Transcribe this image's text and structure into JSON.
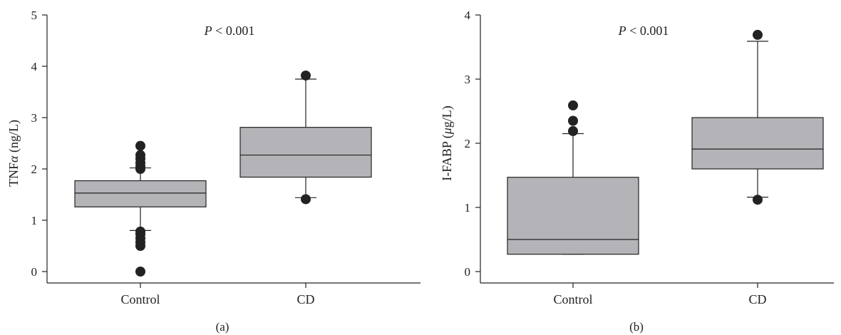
{
  "chart_data": [
    {
      "type": "box",
      "panel_label": "(a)",
      "annotation": {
        "prefix": "P",
        "text": " < 0.001"
      },
      "ylabel": {
        "main": "TNF",
        "greek": "α",
        "unit": " (ng/L)"
      },
      "ylim": [
        0,
        5
      ],
      "yticks": [
        "0",
        "1",
        "2",
        "3",
        "4",
        "5"
      ],
      "categories": [
        "Control",
        "CD"
      ],
      "boxes": [
        {
          "category": "Control",
          "whisker_low": 0.8,
          "q1": 1.26,
          "median": 1.53,
          "q3": 1.77,
          "whisker_high": 2.02,
          "outliers": [
            0.0,
            0.5,
            0.57,
            0.65,
            0.73,
            0.78,
            2.0,
            2.05,
            2.12,
            2.2,
            2.27,
            2.45
          ]
        },
        {
          "category": "CD",
          "whisker_low": 1.44,
          "q1": 1.84,
          "median": 2.27,
          "q3": 2.81,
          "whisker_high": 3.75,
          "outliers": [
            1.41,
            3.82
          ]
        }
      ]
    },
    {
      "type": "box",
      "panel_label": "(b)",
      "annotation": {
        "prefix": "P",
        "text": " < 0.001"
      },
      "ylabel": {
        "main": "I-FABP (",
        "greek": "μ",
        "unit": "g/L)"
      },
      "ylim": [
        0,
        4
      ],
      "yticks": [
        "0",
        "1",
        "2",
        "3",
        "4"
      ],
      "categories": [
        "Control",
        "CD"
      ],
      "boxes": [
        {
          "category": "Control",
          "whisker_low": 0.27,
          "q1": 0.27,
          "median": 0.5,
          "q3": 1.47,
          "whisker_high": 2.15,
          "outliers": [
            2.19,
            2.35,
            2.59
          ]
        },
        {
          "category": "CD",
          "whisker_low": 1.16,
          "q1": 1.6,
          "median": 1.91,
          "q3": 2.4,
          "whisker_high": 3.59,
          "outliers": [
            1.12,
            3.69
          ]
        }
      ]
    }
  ]
}
